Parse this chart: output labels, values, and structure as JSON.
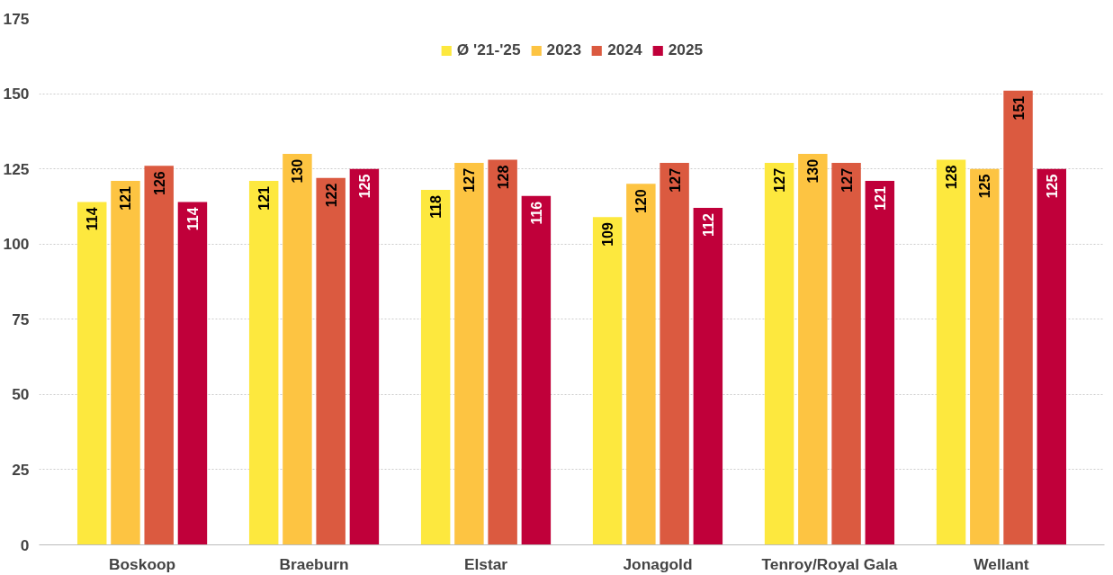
{
  "chart_data": {
    "type": "bar",
    "categories": [
      "Boskoop",
      "Braeburn",
      "Elstar",
      "Jonagold",
      "Tenroy/Royal Gala",
      "Wellant"
    ],
    "series": [
      {
        "name": "Ø '21-'25",
        "color": "#fde83e",
        "values": [
          114,
          121,
          118,
          109,
          127,
          128
        ]
      },
      {
        "name": "2023",
        "color": "#fdc442",
        "values": [
          121,
          130,
          127,
          120,
          130,
          125
        ]
      },
      {
        "name": "2024",
        "color": "#db5a40",
        "values": [
          126,
          122,
          128,
          127,
          127,
          151
        ]
      },
      {
        "name": "2025",
        "color": "#c0003a",
        "values": [
          114,
          125,
          116,
          112,
          121,
          125
        ]
      }
    ],
    "ylim": [
      0,
      175
    ],
    "yticks": [
      0,
      25,
      50,
      75,
      100,
      125,
      150,
      175
    ],
    "grid": "y",
    "legend": "top",
    "data_labels": true
  }
}
